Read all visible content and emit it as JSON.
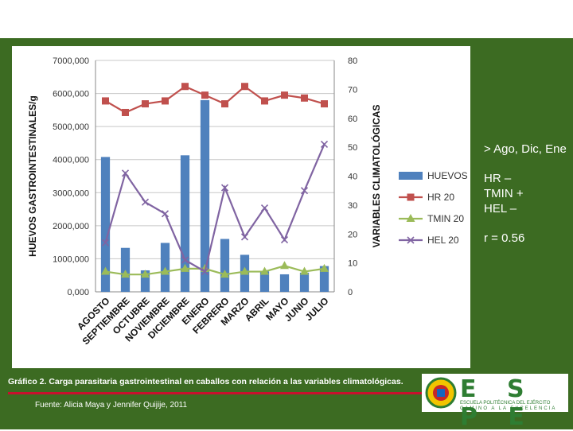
{
  "chart_data": {
    "type": "bar+line",
    "categories": [
      "AGOSTO",
      "SEPTIEMBRE",
      "OCTUBRE",
      "NOVIEMBRE",
      "DICIEMBRE",
      "ENERO",
      "FEBRERO",
      "MARZO",
      "ABRIL",
      "MAYO",
      "JUNIO",
      "JULIO"
    ],
    "ylabel_left": "HUEVOS GASTROINTESTINALES/g",
    "ylabel_right": "VARIABLES CLIMATOLÓGICAS",
    "ylim_left": [
      0,
      7000
    ],
    "ylim_right": [
      0,
      80
    ],
    "left_ticks": [
      "0,000",
      "1000,000",
      "2000,000",
      "3000,000",
      "4000,000",
      "5000,000",
      "6000,000",
      "7000,000"
    ],
    "right_ticks": [
      "0",
      "10",
      "20",
      "30",
      "40",
      "50",
      "60",
      "70",
      "80"
    ],
    "series": [
      {
        "name": "HUEVOS",
        "type": "bar",
        "axis": "left",
        "color": "#4f81bd",
        "values": [
          4080,
          1330,
          650,
          1480,
          4130,
          5800,
          1600,
          1120,
          620,
          530,
          580,
          780
        ]
      },
      {
        "name": "HR 20",
        "type": "line",
        "axis": "right",
        "color": "#c0504d",
        "marker": "square",
        "values": [
          66,
          62,
          65,
          66,
          71,
          68,
          65,
          71,
          66,
          68,
          67,
          65
        ]
      },
      {
        "name": "TMIN 20",
        "type": "line",
        "axis": "right",
        "color": "#9bbb59",
        "marker": "triangle",
        "values": [
          7,
          6,
          6,
          7,
          8,
          8,
          6,
          7,
          7,
          9,
          7,
          8
        ]
      },
      {
        "name": "HEL 20",
        "type": "line",
        "axis": "right",
        "color": "#8064a2",
        "marker": "x",
        "values": [
          17,
          41,
          31,
          27,
          11,
          7,
          36,
          19,
          29,
          18,
          35,
          51
        ]
      }
    ]
  },
  "sidebar": {
    "line1": "> Ago, Dic, Ene",
    "line2": "HR –\nTMIN +\nHEL –",
    "line3": "r = 0.56"
  },
  "caption": "Gráfico 2. Carga parasitaria gastrointestinal en caballos con relación a las variables climatológicas.",
  "source": "Fuente: Alicia Maya y Jennifer Quijije, 2011",
  "logo": {
    "letters": "E S P E",
    "line1": "ESCUELA POLITÉCNICA DEL EJÉRCITO",
    "line2": "CAMINO A LA EXCELENCIA"
  }
}
